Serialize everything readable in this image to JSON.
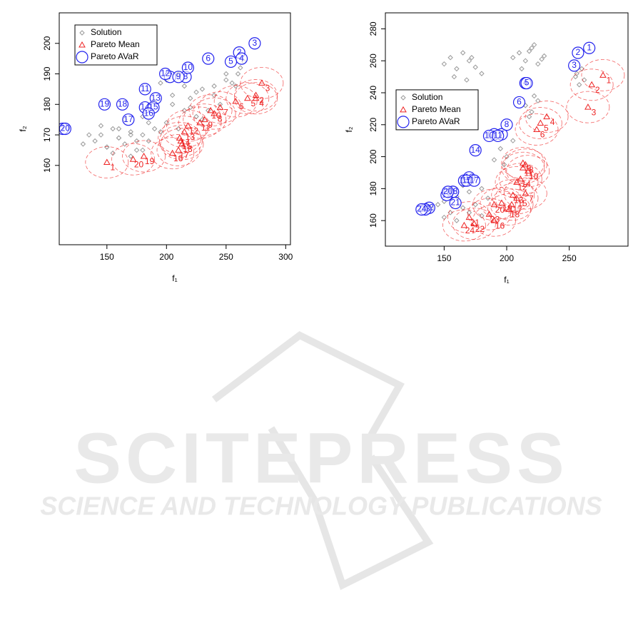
{
  "chart_data": [
    {
      "type": "scatter",
      "xlabel": "f₁",
      "ylabel": "f₂",
      "xlim": [
        110,
        304
      ],
      "ylim": [
        134,
        210
      ],
      "xticks": [
        150,
        200,
        250,
        300
      ],
      "yticks": [
        160,
        170,
        180,
        190,
        200
      ],
      "legend": "top-left",
      "series": [
        {
          "name": "Solution",
          "color": "#999999",
          "marker": "diamond",
          "x": [
            140,
            145,
            150,
            155,
            160,
            165,
            170,
            175,
            180,
            185,
            190,
            145,
            155,
            165,
            175,
            185,
            195,
            150,
            160,
            170,
            180,
            135,
            130,
            200,
            210,
            205,
            215,
            220,
            225,
            230,
            240,
            250,
            255,
            260,
            262,
            258,
            245,
            235,
            225,
            215,
            210,
            200,
            195,
            265,
            250,
            240,
            230,
            220,
            205,
            190,
            160,
            170,
            180
          ],
          "values": [
            168,
            170,
            166,
            172,
            169,
            167,
            171,
            165,
            170,
            168,
            172,
            173,
            164,
            175,
            168,
            174,
            171,
            166,
            169,
            163,
            176,
            170,
            167,
            174,
            172,
            180,
            178,
            182,
            176,
            185,
            183,
            188,
            187,
            190,
            192,
            186,
            180,
            178,
            184,
            186,
            190,
            188,
            187,
            194,
            190,
            186,
            175,
            179,
            183,
            181,
            172,
            170,
            165
          ]
        },
        {
          "name": "Pareto Mean",
          "color": "#ee2222",
          "marker": "triangle",
          "x": [
            150,
            275,
            280,
            275,
            268,
            258,
            245,
            240,
            232,
            237,
            228,
            218,
            215,
            211,
            212,
            205,
            210,
            213,
            181,
            172
          ],
          "values": [
            161,
            183,
            187,
            182,
            182,
            181,
            179,
            177,
            175,
            178,
            174,
            173,
            171,
            169,
            168,
            164,
            165,
            167,
            163,
            162
          ],
          "labels": [
            "1",
            "2",
            "3",
            "4",
            "5",
            "6",
            "7",
            "8",
            "9",
            "10",
            "11",
            "12",
            "13",
            "14",
            "15",
            "16",
            "17",
            "18",
            "19",
            "20"
          ]
        },
        {
          "name": "Pareto AVaR",
          "color": "#2222ee",
          "marker": "circle",
          "x": [
            113,
            261,
            274,
            263,
            254,
            235,
            203,
            216,
            210,
            218,
            182,
            199,
            191,
            182,
            189,
            185,
            168,
            163,
            148,
            115
          ],
          "values": [
            172,
            197,
            200,
            195,
            194,
            195,
            189,
            189,
            189,
            192,
            185,
            190,
            182,
            179,
            179,
            177,
            175,
            180,
            180,
            172
          ],
          "labels": [
            "1",
            "2",
            "3",
            "4",
            "5",
            "6",
            "7",
            "8",
            "9",
            "10",
            "11",
            "12",
            "13",
            "14",
            "15",
            "16",
            "17",
            "18",
            "19",
            "20"
          ]
        }
      ]
    },
    {
      "type": "scatter",
      "xlabel": "f₁",
      "ylabel": "f₂",
      "xlim": [
        103,
        297
      ],
      "ylim": [
        144,
        290
      ],
      "xticks": [
        150,
        200,
        250
      ],
      "yticks": [
        160,
        180,
        200,
        220,
        240,
        260,
        280
      ],
      "legend": "left",
      "series": [
        {
          "name": "Solution",
          "color": "#999999",
          "marker": "diamond",
          "x": [
            150,
            155,
            160,
            165,
            170,
            175,
            180,
            158,
            168,
            172,
            205,
            210,
            215,
            220,
            225,
            230,
            212,
            218,
            228,
            222,
            255,
            258,
            260,
            262,
            256,
            215,
            220,
            225,
            218,
            222,
            190,
            195,
            200,
            205,
            198,
            140,
            145,
            150,
            155,
            160,
            165,
            170,
            175,
            180,
            185,
            150,
            160,
            170,
            180,
            165
          ],
          "values": [
            258,
            262,
            255,
            265,
            260,
            256,
            252,
            250,
            248,
            262,
            262,
            265,
            260,
            268,
            258,
            263,
            255,
            266,
            261,
            270,
            250,
            245,
            255,
            248,
            252,
            232,
            228,
            235,
            225,
            238,
            198,
            205,
            200,
            210,
            195,
            168,
            170,
            172,
            165,
            175,
            168,
            178,
            170,
            180,
            174,
            162,
            160,
            165,
            163,
            182
          ]
        },
        {
          "name": "Pareto Mean",
          "color": "#ee2222",
          "marker": "triangle",
          "x": [
            277,
            268,
            265,
            232,
            227,
            224,
            215,
            215,
            213,
            217,
            213,
            208,
            205,
            211,
            208,
            190,
            204,
            202,
            196,
            190,
            170,
            174,
            186,
            166
          ],
          "values": [
            251,
            245,
            231,
            225,
            221,
            217,
            177,
            195,
            196,
            191,
            193,
            184,
            176,
            186,
            174,
            160,
            170,
            167,
            171,
            170,
            162,
            158,
            164,
            157
          ],
          "labels": [
            "1",
            "2",
            "3",
            "4",
            "5",
            "6",
            "7",
            "8",
            "9",
            "10",
            "11",
            "12",
            "13",
            "14",
            "15",
            "16",
            "17",
            "18",
            "19",
            "20",
            "21",
            "22",
            "23",
            "24"
          ]
        },
        {
          "name": "Pareto AVaR",
          "color": "#2222ee",
          "marker": "circle",
          "x": [
            266,
            257,
            254,
            215,
            216,
            210,
            196,
            200,
            190,
            186,
            193,
            166,
            170,
            175,
            168,
            157,
            174,
            157,
            152,
            153,
            159,
            138,
            135,
            132
          ],
          "values": [
            268,
            265,
            257,
            246,
            246,
            234,
            214,
            220,
            214,
            213,
            213,
            185,
            187,
            204,
            185,
            178,
            185,
            178,
            176,
            178,
            171,
            168,
            167,
            167
          ],
          "labels": [
            "1",
            "2",
            "3",
            "4",
            "5",
            "6",
            "7",
            "8",
            "9",
            "10",
            "11",
            "12",
            "13",
            "14",
            "15",
            "16",
            "17",
            "18",
            "19",
            "20",
            "21",
            "22",
            "23",
            "24"
          ]
        }
      ]
    }
  ],
  "watermark": {
    "title": "SCITEPRESS",
    "subtitle": "SCIENCE AND TECHNOLOGY PUBLICATIONS"
  }
}
